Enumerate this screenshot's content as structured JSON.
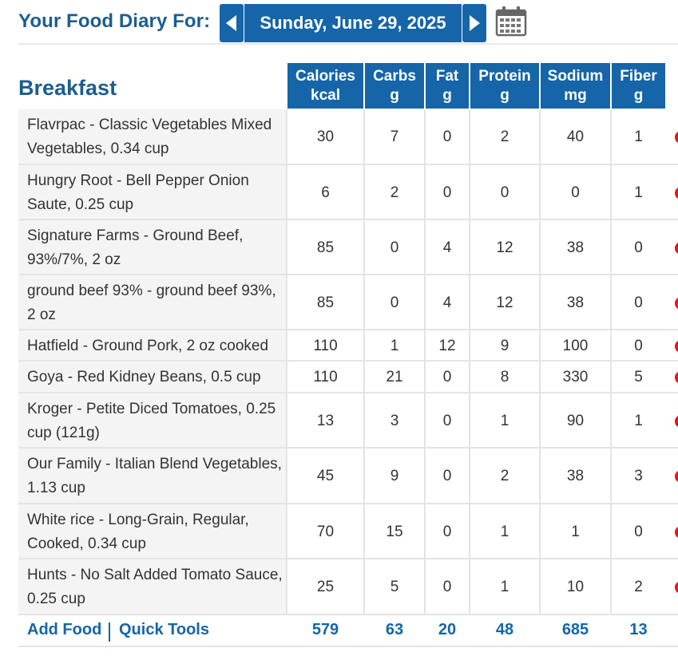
{
  "header": {
    "title": "Your Food Diary For:",
    "date": "Sunday, June 29, 2025"
  },
  "icons": {
    "prev": "chevron-left-icon",
    "next": "chevron-right-icon",
    "calendar": "calendar-icon",
    "delete": "delete-icon"
  },
  "colors": {
    "brand_blue": "#1565a8",
    "title_blue": "#1c5d8f",
    "delete_red": "#e4161b"
  },
  "meal": {
    "name": "Breakfast",
    "columns": [
      {
        "label": "Calories",
        "unit": "kcal"
      },
      {
        "label": "Carbs",
        "unit": "g"
      },
      {
        "label": "Fat",
        "unit": "g"
      },
      {
        "label": "Protein",
        "unit": "g"
      },
      {
        "label": "Sodium",
        "unit": "mg"
      },
      {
        "label": "Fiber",
        "unit": "g"
      }
    ],
    "items": [
      {
        "food": "Flavrpac - Classic Vegetables Mixed Vegetables, 0.34 cup",
        "calories": "30",
        "carbs": "7",
        "fat": "0",
        "protein": "2",
        "sodium": "40",
        "fiber": "1"
      },
      {
        "food": "Hungry Root - Bell Pepper Onion Saute, 0.25 cup",
        "calories": "6",
        "carbs": "2",
        "fat": "0",
        "protein": "0",
        "sodium": "0",
        "fiber": "1"
      },
      {
        "food": "Signature Farms - Ground Beef, 93%/7%, 2 oz",
        "calories": "85",
        "carbs": "0",
        "fat": "4",
        "protein": "12",
        "sodium": "38",
        "fiber": "0"
      },
      {
        "food": "ground beef 93% - ground beef 93%, 2 oz",
        "calories": "85",
        "carbs": "0",
        "fat": "4",
        "protein": "12",
        "sodium": "38",
        "fiber": "0"
      },
      {
        "food": "Hatfield - Ground Pork, 2 oz cooked",
        "calories": "110",
        "carbs": "1",
        "fat": "12",
        "protein": "9",
        "sodium": "100",
        "fiber": "0"
      },
      {
        "food": "Goya - Red Kidney Beans, 0.5 cup",
        "calories": "110",
        "carbs": "21",
        "fat": "0",
        "protein": "8",
        "sodium": "330",
        "fiber": "5"
      },
      {
        "food": "Kroger - Petite Diced Tomatoes, 0.25 cup (121g)",
        "calories": "13",
        "carbs": "3",
        "fat": "0",
        "protein": "1",
        "sodium": "90",
        "fiber": "1"
      },
      {
        "food": "Our Family - Italian Blend Vegetables, 1.13 cup",
        "calories": "45",
        "carbs": "9",
        "fat": "0",
        "protein": "2",
        "sodium": "38",
        "fiber": "3"
      },
      {
        "food": "White rice - Long-Grain, Regular, Cooked, 0.34 cup",
        "calories": "70",
        "carbs": "15",
        "fat": "0",
        "protein": "1",
        "sodium": "1",
        "fiber": "0"
      },
      {
        "food": "Hunts - No Salt Added Tomato Sauce, 0.25 cup",
        "calories": "25",
        "carbs": "5",
        "fat": "0",
        "protein": "1",
        "sodium": "10",
        "fiber": "2"
      }
    ],
    "add_food_label": "Add Food",
    "quick_tools_label": "Quick Tools",
    "totals": {
      "calories": "579",
      "carbs": "63",
      "fat": "20",
      "protein": "48",
      "sodium": "685",
      "fiber": "13"
    }
  }
}
